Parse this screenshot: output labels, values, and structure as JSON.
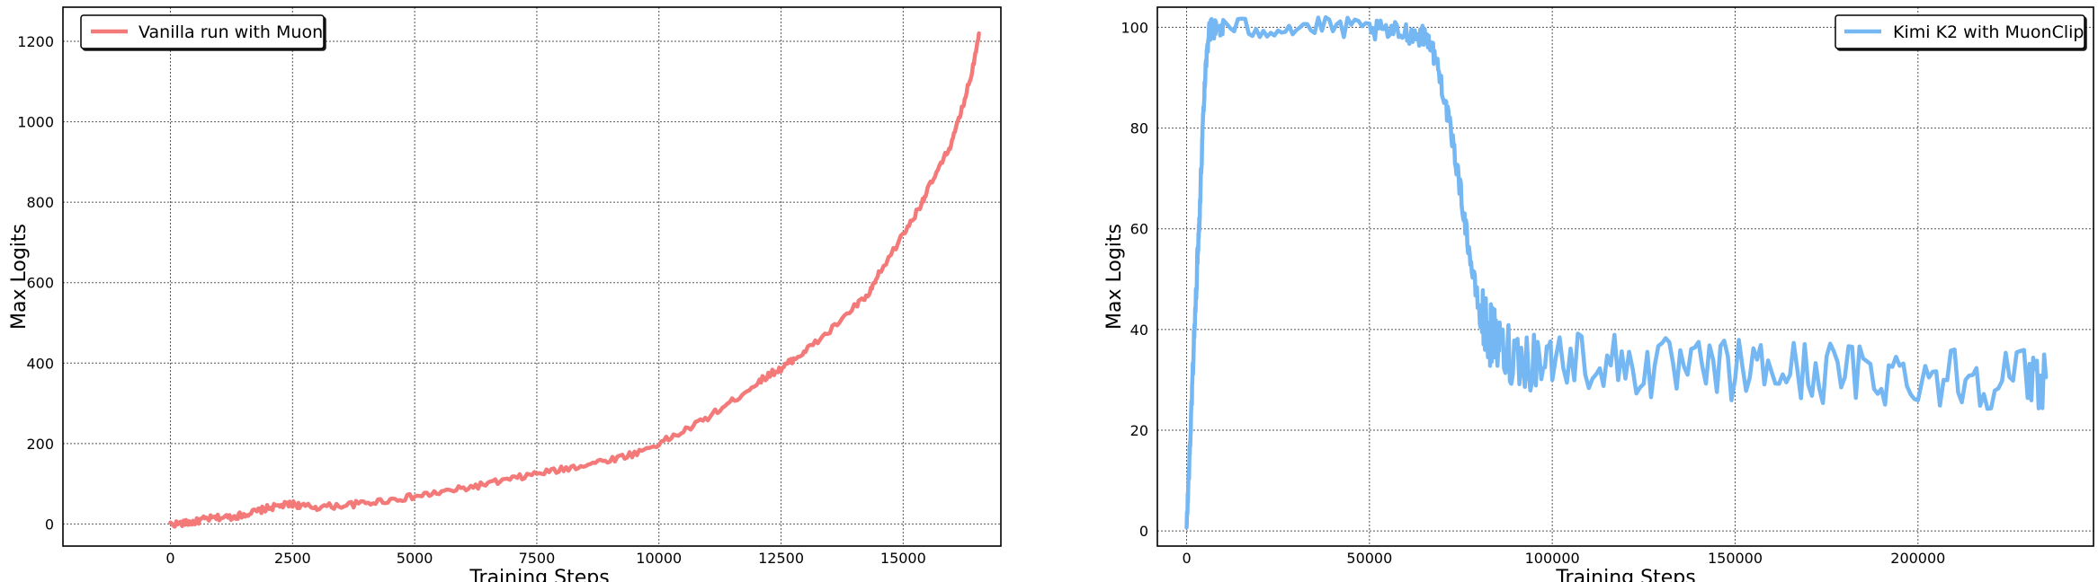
{
  "chart_data": [
    {
      "type": "line",
      "title": "",
      "xlabel": "Training Steps",
      "ylabel": "Max Logits",
      "xlim": [
        -2200,
        17000
      ],
      "ylim": [
        -55,
        1285
      ],
      "xticks": [
        0,
        2500,
        5000,
        7500,
        10000,
        12500,
        15000
      ],
      "yticks": [
        0,
        200,
        400,
        600,
        800,
        1000,
        1200
      ],
      "xtick_labels": [
        "0",
        "2500",
        "5000",
        "7500",
        "10000",
        "12500",
        "15000"
      ],
      "ytick_labels": [
        "0",
        "200",
        "400",
        "600",
        "800",
        "1000",
        "1200"
      ],
      "grid": true,
      "legend_position": "top-left",
      "series": [
        {
          "name": "Vanilla run with Muon",
          "color": "#f47a7a",
          "x": [
            0,
            300,
            500,
            700,
            1000,
            1300,
            1500,
            1800,
            2000,
            2300,
            2500,
            2700,
            3000,
            3500,
            4000,
            4500,
            5000,
            5500,
            6000,
            6500,
            7000,
            7500,
            8000,
            8500,
            9000,
            9500,
            10000,
            10500,
            11000,
            11500,
            12000,
            12300,
            12500,
            12700,
            13000,
            13500,
            14000,
            14300,
            14500,
            15000,
            15300,
            15500,
            15800,
            16000,
            16200,
            16400,
            16550
          ],
          "y": [
            0,
            2,
            5,
            12,
            16,
            18,
            24,
            32,
            40,
            46,
            50,
            44,
            42,
            46,
            52,
            60,
            68,
            78,
            88,
            100,
            112,
            125,
            135,
            148,
            160,
            175,
            200,
            230,
            265,
            305,
            350,
            375,
            385,
            405,
            430,
            480,
            540,
            570,
            620,
            720,
            780,
            830,
            900,
            950,
            1030,
            1120,
            1220
          ]
        }
      ]
    },
    {
      "type": "line",
      "title": "",
      "xlabel": "Training Steps",
      "ylabel": "Max Logits",
      "xlim": [
        -8000,
        248000
      ],
      "ylim": [
        -3,
        104
      ],
      "xticks": [
        0,
        50000,
        100000,
        150000,
        200000
      ],
      "yticks": [
        0,
        20,
        40,
        60,
        80,
        100
      ],
      "xtick_labels": [
        "0",
        "50000",
        "100000",
        "150000",
        "200000"
      ],
      "ytick_labels": [
        "0",
        "20",
        "40",
        "60",
        "80",
        "100"
      ],
      "grid": true,
      "legend_position": "top-right",
      "series": [
        {
          "name": "Kimi K2 with MuonClip",
          "color": "#74b7f3",
          "x": [
            0,
            500,
            1000,
            1500,
            2000,
            2500,
            3000,
            3500,
            4000,
            4500,
            5000,
            6000,
            7000,
            8000,
            10000,
            20000,
            30000,
            40000,
            50000,
            55000,
            60000,
            63000,
            66000,
            68000,
            70000,
            72000,
            74000,
            76000,
            78000,
            80000,
            82000,
            84000,
            86000,
            90000,
            95000,
            100000,
            110000,
            120000,
            130000,
            140000,
            150000,
            160000,
            170000,
            180000,
            190000,
            200000,
            210000,
            220000,
            230000,
            235000
          ],
          "y": [
            0,
            10,
            18,
            28,
            38,
            45,
            55,
            62,
            72,
            82,
            90,
            99,
            100,
            99.5,
            100,
            99.8,
            100,
            100,
            99.5,
            99,
            99,
            98.5,
            98,
            94,
            88,
            80,
            72,
            62,
            52,
            44,
            40,
            38,
            36,
            35,
            34,
            34.5,
            34,
            33,
            32,
            31.5,
            32,
            32,
            31.5,
            31.5,
            31,
            31,
            31,
            30.5,
            30.5,
            30.5
          ]
        }
      ]
    }
  ]
}
